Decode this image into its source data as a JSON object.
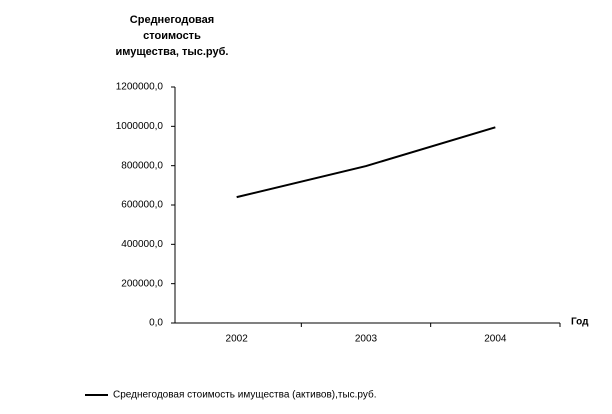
{
  "chart_data": {
    "type": "line",
    "y_title": "Среднегодовая стоимость имущества, тыс.руб.",
    "x_title": "Год",
    "categories": [
      "2002",
      "2003",
      "2004"
    ],
    "series": [
      {
        "name": "Среднегодовая стоимость имущества (активов),тыс.руб.",
        "color": "#000000",
        "values": [
          640000,
          798000,
          995000
        ]
      }
    ],
    "ylim": [
      0,
      1200000
    ],
    "yticks": [
      {
        "value": 0,
        "label": "0,0"
      },
      {
        "value": 200000,
        "label": "200000,0"
      },
      {
        "value": 400000,
        "label": "400000,0"
      },
      {
        "value": 600000,
        "label": "600000,0"
      },
      {
        "value": 800000,
        "label": "800000,0"
      },
      {
        "value": 1000000,
        "label": "1000000,0"
      },
      {
        "value": 1200000,
        "label": "1200000,0"
      }
    ],
    "grid": false,
    "legend": "bottom"
  }
}
